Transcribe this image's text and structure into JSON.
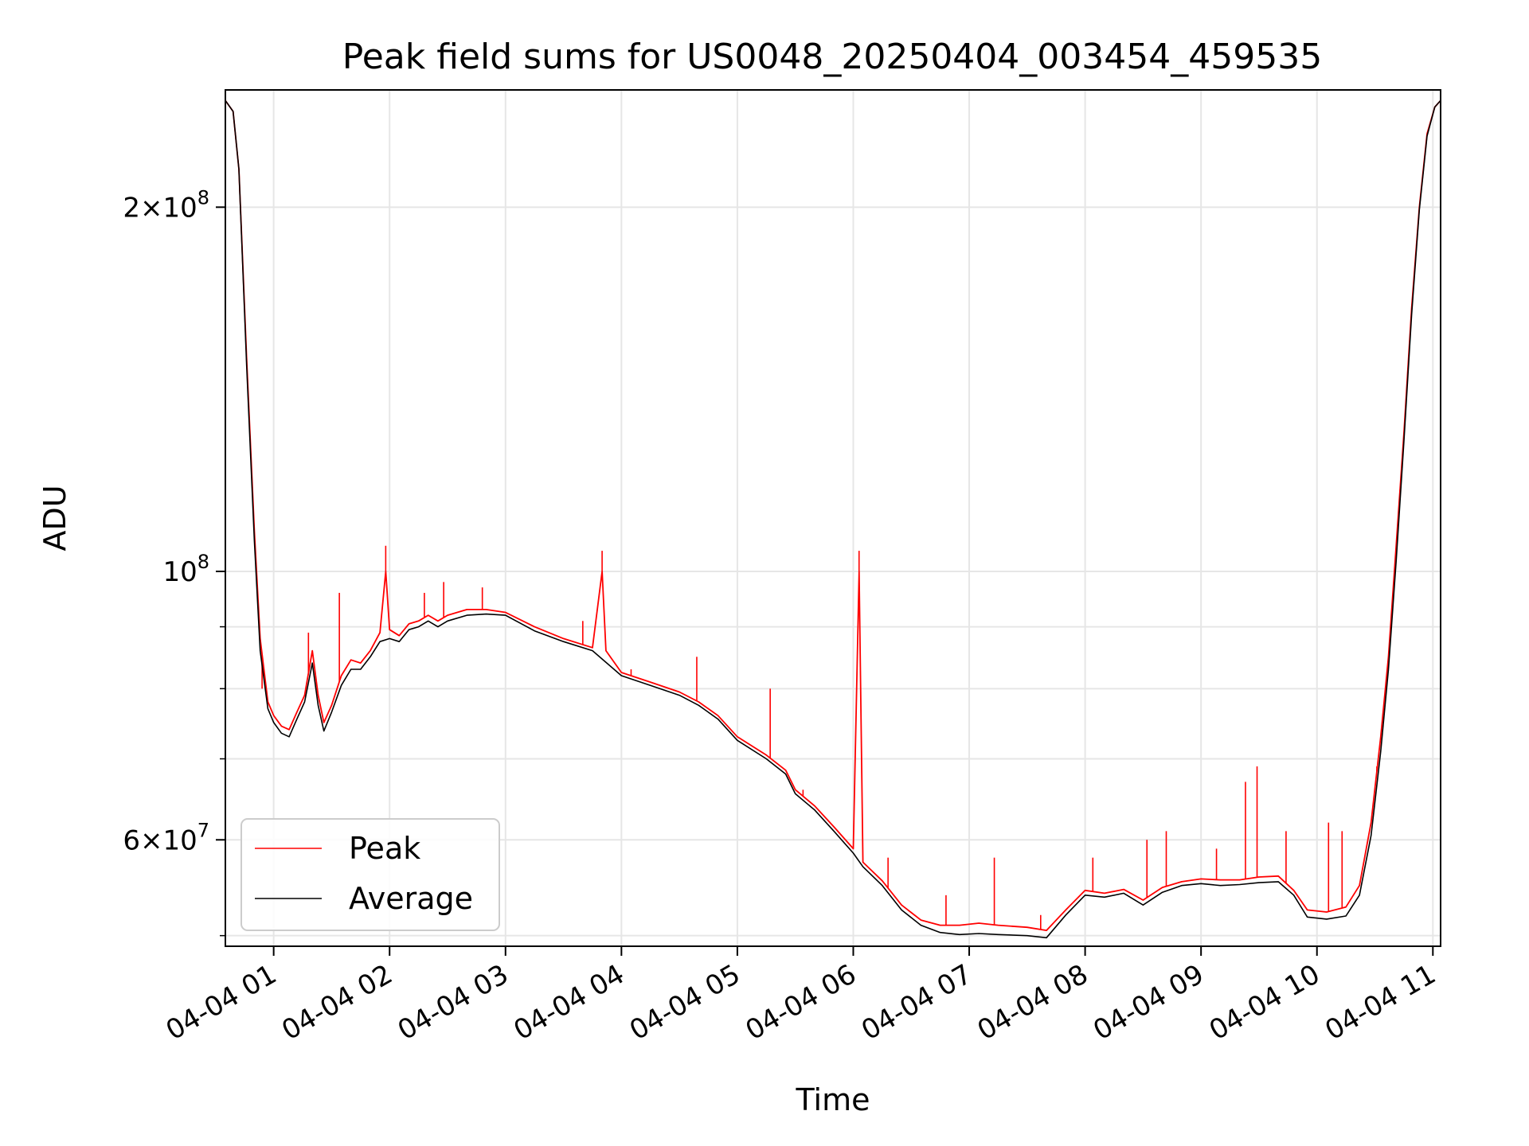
{
  "chart_data": {
    "type": "line",
    "title": "Peak field sums for US0048_20250404_003454_459535",
    "xlabel": "Time",
    "ylabel": "ADU",
    "x_axis": "datetime",
    "y_scale": "log",
    "xlim": [
      "2025-04-04 00:35",
      "2025-04-04 11:04"
    ],
    "ylim": [
      49000000,
      250000000
    ],
    "grid": true,
    "legend_position": "lower-left",
    "x_ticks": [
      {
        "value": "2025-04-04 01:00",
        "label": "04-04 01"
      },
      {
        "value": "2025-04-04 02:00",
        "label": "04-04 02"
      },
      {
        "value": "2025-04-04 03:00",
        "label": "04-04 03"
      },
      {
        "value": "2025-04-04 04:00",
        "label": "04-04 04"
      },
      {
        "value": "2025-04-04 05:00",
        "label": "04-04 05"
      },
      {
        "value": "2025-04-04 06:00",
        "label": "04-04 06"
      },
      {
        "value": "2025-04-04 07:00",
        "label": "04-04 07"
      },
      {
        "value": "2025-04-04 08:00",
        "label": "04-04 08"
      },
      {
        "value": "2025-04-04 09:00",
        "label": "04-04 09"
      },
      {
        "value": "2025-04-04 10:00",
        "label": "04-04 10"
      },
      {
        "value": "2025-04-04 11:00",
        "label": "04-04 11"
      }
    ],
    "y_major_ticks": [
      {
        "value": 60000000,
        "mantissa": "6",
        "exponent": "7"
      },
      {
        "value": 100000000,
        "mantissa": "",
        "exponent": "8"
      },
      {
        "value": 200000000,
        "mantissa": "2",
        "exponent": "8"
      }
    ],
    "y_minor_ticks": [
      50000000,
      70000000,
      80000000,
      90000000
    ],
    "series": [
      {
        "name": "Peak",
        "color": "#ff0000",
        "points": [
          [
            "2025-04-04 00:35",
            245000000
          ],
          [
            "2025-04-04 00:39",
            240000000
          ],
          [
            "2025-04-04 00:42",
            215000000
          ],
          [
            "2025-04-04 00:46",
            150000000
          ],
          [
            "2025-04-04 00:50",
            108000000
          ],
          [
            "2025-04-04 00:53",
            88000000
          ],
          [
            "2025-04-04 00:57",
            78000000
          ],
          [
            "2025-04-04 01:00",
            76000000
          ],
          [
            "2025-04-04 01:04",
            74500000
          ],
          [
            "2025-04-04 01:08",
            74000000
          ],
          [
            "2025-04-04 01:12",
            76500000
          ],
          [
            "2025-04-04 01:16",
            79000000
          ],
          [
            "2025-04-04 01:20",
            86000000
          ],
          [
            "2025-04-04 01:23",
            79000000
          ],
          [
            "2025-04-04 01:26",
            75000000
          ],
          [
            "2025-04-04 01:30",
            77500000
          ],
          [
            "2025-04-04 01:35",
            82000000
          ],
          [
            "2025-04-04 01:40",
            84500000
          ],
          [
            "2025-04-04 01:45",
            84000000
          ],
          [
            "2025-04-04 01:50",
            86000000
          ],
          [
            "2025-04-04 01:55",
            89000000
          ],
          [
            "2025-04-04 01:58",
            100000000
          ],
          [
            "2025-04-04 02:00",
            89500000
          ],
          [
            "2025-04-04 02:05",
            88500000
          ],
          [
            "2025-04-04 02:10",
            90500000
          ],
          [
            "2025-04-04 02:15",
            91000000
          ],
          [
            "2025-04-04 02:20",
            92000000
          ],
          [
            "2025-04-04 02:25",
            91000000
          ],
          [
            "2025-04-04 02:30",
            92000000
          ],
          [
            "2025-04-04 02:40",
            93000000
          ],
          [
            "2025-04-04 02:50",
            93000000
          ],
          [
            "2025-04-04 03:00",
            92500000
          ],
          [
            "2025-04-04 03:15",
            90000000
          ],
          [
            "2025-04-04 03:30",
            88000000
          ],
          [
            "2025-04-04 03:45",
            86500000
          ],
          [
            "2025-04-04 03:50",
            100000000
          ],
          [
            "2025-04-04 03:52",
            86000000
          ],
          [
            "2025-04-04 04:00",
            82500000
          ],
          [
            "2025-04-04 04:15",
            81000000
          ],
          [
            "2025-04-04 04:30",
            79500000
          ],
          [
            "2025-04-04 04:40",
            78000000
          ],
          [
            "2025-04-04 04:50",
            76000000
          ],
          [
            "2025-04-04 05:00",
            73000000
          ],
          [
            "2025-04-04 05:15",
            70500000
          ],
          [
            "2025-04-04 05:25",
            68500000
          ],
          [
            "2025-04-04 05:30",
            66000000
          ],
          [
            "2025-04-04 05:40",
            64000000
          ],
          [
            "2025-04-04 05:50",
            61500000
          ],
          [
            "2025-04-04 06:00",
            59000000
          ],
          [
            "2025-04-04 06:03",
            100000000
          ],
          [
            "2025-04-04 06:05",
            57500000
          ],
          [
            "2025-04-04 06:15",
            55500000
          ],
          [
            "2025-04-04 06:25",
            53000000
          ],
          [
            "2025-04-04 06:35",
            51500000
          ],
          [
            "2025-04-04 06:45",
            51000000
          ],
          [
            "2025-04-04 06:55",
            51000000
          ],
          [
            "2025-04-04 07:05",
            51200000
          ],
          [
            "2025-04-04 07:15",
            51000000
          ],
          [
            "2025-04-04 07:30",
            50800000
          ],
          [
            "2025-04-04 07:40",
            50500000
          ],
          [
            "2025-04-04 07:50",
            52500000
          ],
          [
            "2025-04-04 08:00",
            54500000
          ],
          [
            "2025-04-04 08:10",
            54200000
          ],
          [
            "2025-04-04 08:20",
            54600000
          ],
          [
            "2025-04-04 08:30",
            53500000
          ],
          [
            "2025-04-04 08:40",
            54800000
          ],
          [
            "2025-04-04 08:50",
            55400000
          ],
          [
            "2025-04-04 09:00",
            55700000
          ],
          [
            "2025-04-04 09:10",
            55600000
          ],
          [
            "2025-04-04 09:20",
            55600000
          ],
          [
            "2025-04-04 09:30",
            55900000
          ],
          [
            "2025-04-04 09:40",
            56000000
          ],
          [
            "2025-04-04 09:48",
            54500000
          ],
          [
            "2025-04-04 09:55",
            52500000
          ],
          [
            "2025-04-04 10:05",
            52300000
          ],
          [
            "2025-04-04 10:15",
            52800000
          ],
          [
            "2025-04-04 10:22",
            55000000
          ],
          [
            "2025-04-04 10:28",
            62000000
          ],
          [
            "2025-04-04 10:33",
            73000000
          ],
          [
            "2025-04-04 10:37",
            85000000
          ],
          [
            "2025-04-04 10:41",
            105000000
          ],
          [
            "2025-04-04 10:45",
            130000000
          ],
          [
            "2025-04-04 10:49",
            165000000
          ],
          [
            "2025-04-04 10:53",
            200000000
          ],
          [
            "2025-04-04 10:57",
            230000000
          ],
          [
            "2025-04-04 11:01",
            242000000
          ],
          [
            "2025-04-04 11:04",
            245000000
          ]
        ],
        "spikes": [
          [
            "2025-04-04 00:54",
            80000000
          ],
          [
            "2025-04-04 01:18",
            89000000
          ],
          [
            "2025-04-04 01:34",
            96000000
          ],
          [
            "2025-04-04 01:58",
            105000000
          ],
          [
            "2025-04-04 02:18",
            96000000
          ],
          [
            "2025-04-04 02:28",
            98000000
          ],
          [
            "2025-04-04 02:48",
            97000000
          ],
          [
            "2025-04-04 03:40",
            91000000
          ],
          [
            "2025-04-04 03:50",
            104000000
          ],
          [
            "2025-04-04 04:05",
            83000000
          ],
          [
            "2025-04-04 04:39",
            85000000
          ],
          [
            "2025-04-04 05:17",
            80000000
          ],
          [
            "2025-04-04 05:34",
            66000000
          ],
          [
            "2025-04-04 06:03",
            104000000
          ],
          [
            "2025-04-04 06:18",
            58000000
          ],
          [
            "2025-04-04 06:48",
            54000000
          ],
          [
            "2025-04-04 07:13",
            58000000
          ],
          [
            "2025-04-04 07:37",
            52000000
          ],
          [
            "2025-04-04 08:04",
            58000000
          ],
          [
            "2025-04-04 08:32",
            60000000
          ],
          [
            "2025-04-04 08:42",
            61000000
          ],
          [
            "2025-04-04 09:08",
            59000000
          ],
          [
            "2025-04-04 09:23",
            67000000
          ],
          [
            "2025-04-04 09:29",
            69000000
          ],
          [
            "2025-04-04 09:44",
            61000000
          ],
          [
            "2025-04-04 10:06",
            62000000
          ],
          [
            "2025-04-04 10:13",
            61000000
          ],
          [
            "2025-04-04 10:31",
            69000000
          ],
          [
            "2025-04-04 10:43",
            115000000
          ]
        ]
      },
      {
        "name": "Average",
        "color": "#000000",
        "points": [
          [
            "2025-04-04 00:35",
            245000000
          ],
          [
            "2025-04-04 00:39",
            240000000
          ],
          [
            "2025-04-04 00:42",
            215000000
          ],
          [
            "2025-04-04 00:46",
            148000000
          ],
          [
            "2025-04-04 00:50",
            106000000
          ],
          [
            "2025-04-04 00:53",
            86000000
          ],
          [
            "2025-04-04 00:57",
            77000000
          ],
          [
            "2025-04-04 01:00",
            75000000
          ],
          [
            "2025-04-04 01:04",
            73500000
          ],
          [
            "2025-04-04 01:08",
            73000000
          ],
          [
            "2025-04-04 01:12",
            75500000
          ],
          [
            "2025-04-04 01:16",
            78000000
          ],
          [
            "2025-04-04 01:20",
            84000000
          ],
          [
            "2025-04-04 01:23",
            77500000
          ],
          [
            "2025-04-04 01:26",
            73800000
          ],
          [
            "2025-04-04 01:30",
            76500000
          ],
          [
            "2025-04-04 01:35",
            80500000
          ],
          [
            "2025-04-04 01:40",
            83000000
          ],
          [
            "2025-04-04 01:45",
            83000000
          ],
          [
            "2025-04-04 01:50",
            85000000
          ],
          [
            "2025-04-04 01:55",
            87500000
          ],
          [
            "2025-04-04 02:00",
            88000000
          ],
          [
            "2025-04-04 02:05",
            87500000
          ],
          [
            "2025-04-04 02:10",
            89500000
          ],
          [
            "2025-04-04 02:15",
            90000000
          ],
          [
            "2025-04-04 02:20",
            91000000
          ],
          [
            "2025-04-04 02:25",
            90000000
          ],
          [
            "2025-04-04 02:30",
            91000000
          ],
          [
            "2025-04-04 02:40",
            92000000
          ],
          [
            "2025-04-04 02:50",
            92200000
          ],
          [
            "2025-04-04 03:00",
            92000000
          ],
          [
            "2025-04-04 03:15",
            89300000
          ],
          [
            "2025-04-04 03:30",
            87500000
          ],
          [
            "2025-04-04 03:45",
            86000000
          ],
          [
            "2025-04-04 04:00",
            82000000
          ],
          [
            "2025-04-04 04:15",
            80500000
          ],
          [
            "2025-04-04 04:30",
            79000000
          ],
          [
            "2025-04-04 04:40",
            77500000
          ],
          [
            "2025-04-04 04:50",
            75500000
          ],
          [
            "2025-04-04 05:00",
            72500000
          ],
          [
            "2025-04-04 05:15",
            70000000
          ],
          [
            "2025-04-04 05:25",
            68000000
          ],
          [
            "2025-04-04 05:30",
            65500000
          ],
          [
            "2025-04-04 05:40",
            63500000
          ],
          [
            "2025-04-04 05:50",
            61000000
          ],
          [
            "2025-04-04 06:00",
            58500000
          ],
          [
            "2025-04-04 06:05",
            57000000
          ],
          [
            "2025-04-04 06:15",
            55000000
          ],
          [
            "2025-04-04 06:25",
            52500000
          ],
          [
            "2025-04-04 06:35",
            51000000
          ],
          [
            "2025-04-04 06:45",
            50300000
          ],
          [
            "2025-04-04 06:55",
            50100000
          ],
          [
            "2025-04-04 07:05",
            50200000
          ],
          [
            "2025-04-04 07:15",
            50100000
          ],
          [
            "2025-04-04 07:30",
            50000000
          ],
          [
            "2025-04-04 07:40",
            49800000
          ],
          [
            "2025-04-04 07:50",
            52000000
          ],
          [
            "2025-04-04 08:00",
            54000000
          ],
          [
            "2025-04-04 08:10",
            53800000
          ],
          [
            "2025-04-04 08:20",
            54200000
          ],
          [
            "2025-04-04 08:30",
            53000000
          ],
          [
            "2025-04-04 08:40",
            54300000
          ],
          [
            "2025-04-04 08:50",
            55000000
          ],
          [
            "2025-04-04 09:00",
            55200000
          ],
          [
            "2025-04-04 09:10",
            55000000
          ],
          [
            "2025-04-04 09:20",
            55100000
          ],
          [
            "2025-04-04 09:30",
            55300000
          ],
          [
            "2025-04-04 09:40",
            55400000
          ],
          [
            "2025-04-04 09:48",
            54000000
          ],
          [
            "2025-04-04 09:55",
            51800000
          ],
          [
            "2025-04-04 10:05",
            51600000
          ],
          [
            "2025-04-04 10:15",
            51900000
          ],
          [
            "2025-04-04 10:22",
            54000000
          ],
          [
            "2025-04-04 10:28",
            60500000
          ],
          [
            "2025-04-04 10:33",
            71000000
          ],
          [
            "2025-04-04 10:37",
            83000000
          ],
          [
            "2025-04-04 10:41",
            102000000
          ],
          [
            "2025-04-04 10:45",
            128000000
          ],
          [
            "2025-04-04 10:49",
            163000000
          ],
          [
            "2025-04-04 10:53",
            199000000
          ],
          [
            "2025-04-04 10:57",
            229000000
          ],
          [
            "2025-04-04 11:01",
            242000000
          ],
          [
            "2025-04-04 11:04",
            245000000
          ]
        ]
      }
    ]
  }
}
